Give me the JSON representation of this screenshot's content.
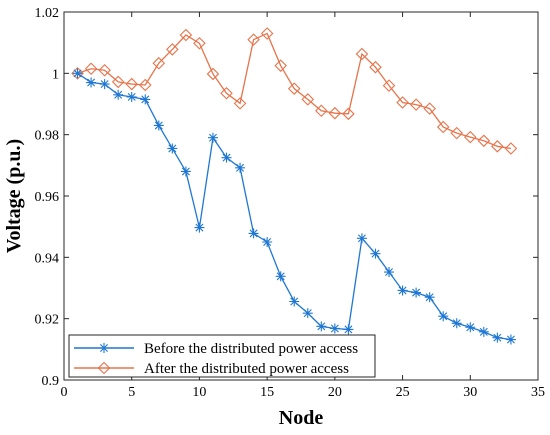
{
  "chart_data": {
    "type": "line",
    "xlabel": "Node",
    "ylabel": "Voltage (p.u.)",
    "xlim": [
      0,
      35
    ],
    "ylim": [
      0.9,
      1.02
    ],
    "xticks": [
      0,
      5,
      10,
      15,
      20,
      25,
      30,
      35
    ],
    "xtick_labels": [
      "0",
      "5",
      "10",
      "15",
      "20",
      "25",
      "30",
      "35"
    ],
    "yticks": [
      0.9,
      0.92,
      0.94,
      0.96,
      0.98,
      1.0,
      1.02
    ],
    "ytick_labels": [
      "0.9",
      "0.92",
      "0.94",
      "0.96",
      "0.98",
      "1",
      "1.02"
    ],
    "grid": false,
    "legend_position": "bottom-left",
    "x": [
      1,
      2,
      3,
      4,
      5,
      6,
      7,
      8,
      9,
      10,
      11,
      12,
      13,
      14,
      15,
      16,
      17,
      18,
      19,
      20,
      21,
      22,
      23,
      24,
      25,
      26,
      27,
      28,
      29,
      30,
      31,
      32,
      33
    ],
    "series": [
      {
        "name": "Before the distributed power access",
        "color": "#1f77d4",
        "marker": "asterisk",
        "values": [
          1.0,
          0.997,
          0.9965,
          0.993,
          0.9923,
          0.9915,
          0.983,
          0.9755,
          0.968,
          0.9497,
          0.979,
          0.9725,
          0.9692,
          0.9478,
          0.945,
          0.9338,
          0.9256,
          0.9218,
          0.9175,
          0.9168,
          0.9165,
          0.9462,
          0.9412,
          0.9352,
          0.9292,
          0.9285,
          0.927,
          0.9208,
          0.9185,
          0.9172,
          0.9157,
          0.9138,
          0.9132
        ]
      },
      {
        "name": "After the distributed power access",
        "color": "#e8734a",
        "marker": "diamond",
        "values": [
          1.0,
          1.0015,
          1.001,
          0.9972,
          0.9965,
          0.9962,
          1.0033,
          1.0078,
          1.0125,
          1.0098,
          0.9998,
          0.9935,
          0.9902,
          1.011,
          1.013,
          1.0025,
          0.995,
          0.9915,
          0.9878,
          0.987,
          0.9868,
          1.0063,
          1.002,
          0.996,
          0.9905,
          0.9898,
          0.9885,
          0.9825,
          0.9805,
          0.9792,
          0.978,
          0.9762,
          0.9755
        ]
      }
    ]
  }
}
